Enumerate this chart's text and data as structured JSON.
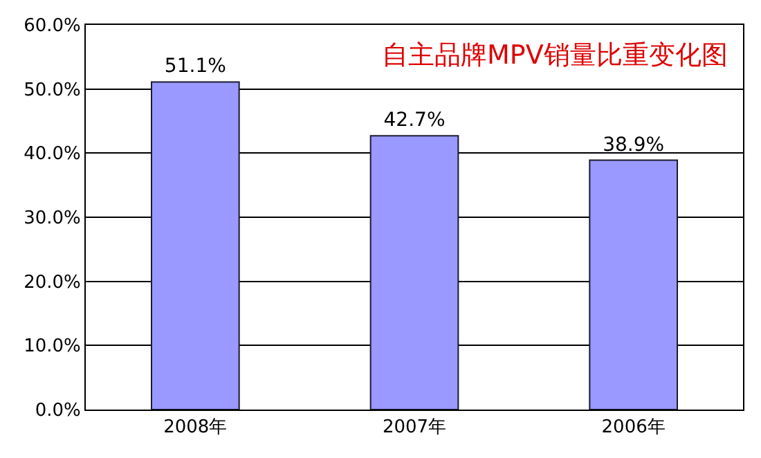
{
  "chart_data": {
    "type": "bar",
    "title": "自主品牌MPV销量比重变化图",
    "categories": [
      "2008年",
      "2007年",
      "2006年"
    ],
    "values": [
      51.1,
      42.7,
      38.9
    ],
    "color": "#9999ff",
    "value_labels": [
      "51.1%",
      "42.7%",
      "38.9%"
    ],
    "ylim": [
      0,
      60
    ],
    "yticks": [
      {
        "value": 0,
        "label": "0.0%"
      },
      {
        "value": 10,
        "label": "10.0%"
      },
      {
        "value": 20,
        "label": "20.0%"
      },
      {
        "value": 30,
        "label": "30.0%"
      },
      {
        "value": 40,
        "label": "40.0%"
      },
      {
        "value": 50,
        "label": "50.0%"
      },
      {
        "value": 60,
        "label": "60.0%"
      }
    ],
    "grid": "y"
  }
}
